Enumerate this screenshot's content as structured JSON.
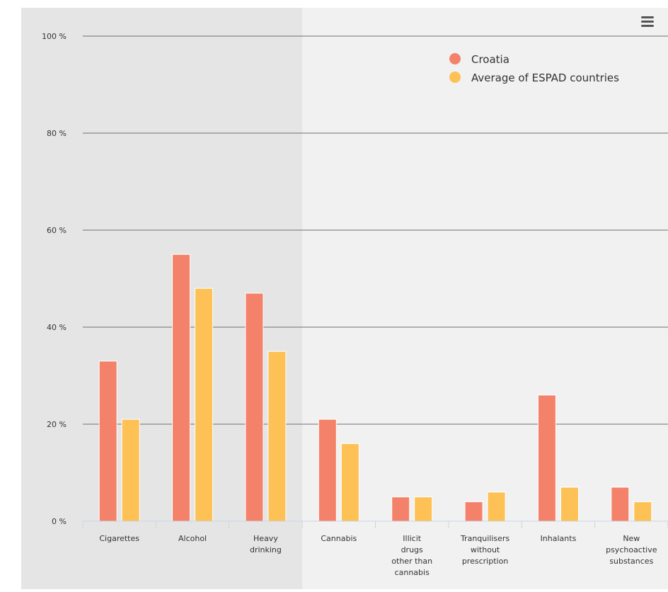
{
  "chart_data": {
    "type": "bar",
    "title": "",
    "xlabel": "",
    "ylabel": "",
    "ylim": [
      0,
      100
    ],
    "y_ticks": [
      0,
      20,
      40,
      60,
      80,
      100
    ],
    "y_tick_suffix": " %",
    "grid": true,
    "legend_position": "top-right",
    "highlighted_categories": [
      "Cigarettes",
      "Alcohol",
      "Heavy drinking"
    ],
    "categories": [
      "Cigarettes",
      "Alcohol",
      "Heavy drinking",
      "Cannabis",
      "Illicit drugs other than cannabis",
      "Tranquilisers without prescription",
      "Inhalants",
      "New psychoactive substances"
    ],
    "category_lines": [
      [
        "Cigarettes"
      ],
      [
        "Alcohol"
      ],
      [
        "Heavy",
        "drinking"
      ],
      [
        "Cannabis"
      ],
      [
        "Illicit",
        "drugs",
        "other than",
        "cannabis"
      ],
      [
        "Tranquilisers",
        "without",
        "prescription"
      ],
      [
        "Inhalants"
      ],
      [
        "New",
        "psychoactive",
        "substances"
      ]
    ],
    "series": [
      {
        "name": "Croatia",
        "color": "#f4826a",
        "values": [
          33,
          55,
          47,
          21,
          5,
          4,
          26,
          7
        ]
      },
      {
        "name": "Average of ESPAD countries",
        "color": "#fdc155",
        "values": [
          21,
          48,
          35,
          16,
          5,
          6,
          7,
          4
        ]
      }
    ]
  },
  "colors": {
    "plot_background": "#f1f1f1",
    "highlight_band": "#e5e5e5",
    "gridline": "#6f6f6f",
    "axis_line": "#c8d6e6",
    "label_text": "#333333",
    "menu_icon": "#555555"
  },
  "menu": {
    "icon": "hamburger-menu-icon"
  }
}
